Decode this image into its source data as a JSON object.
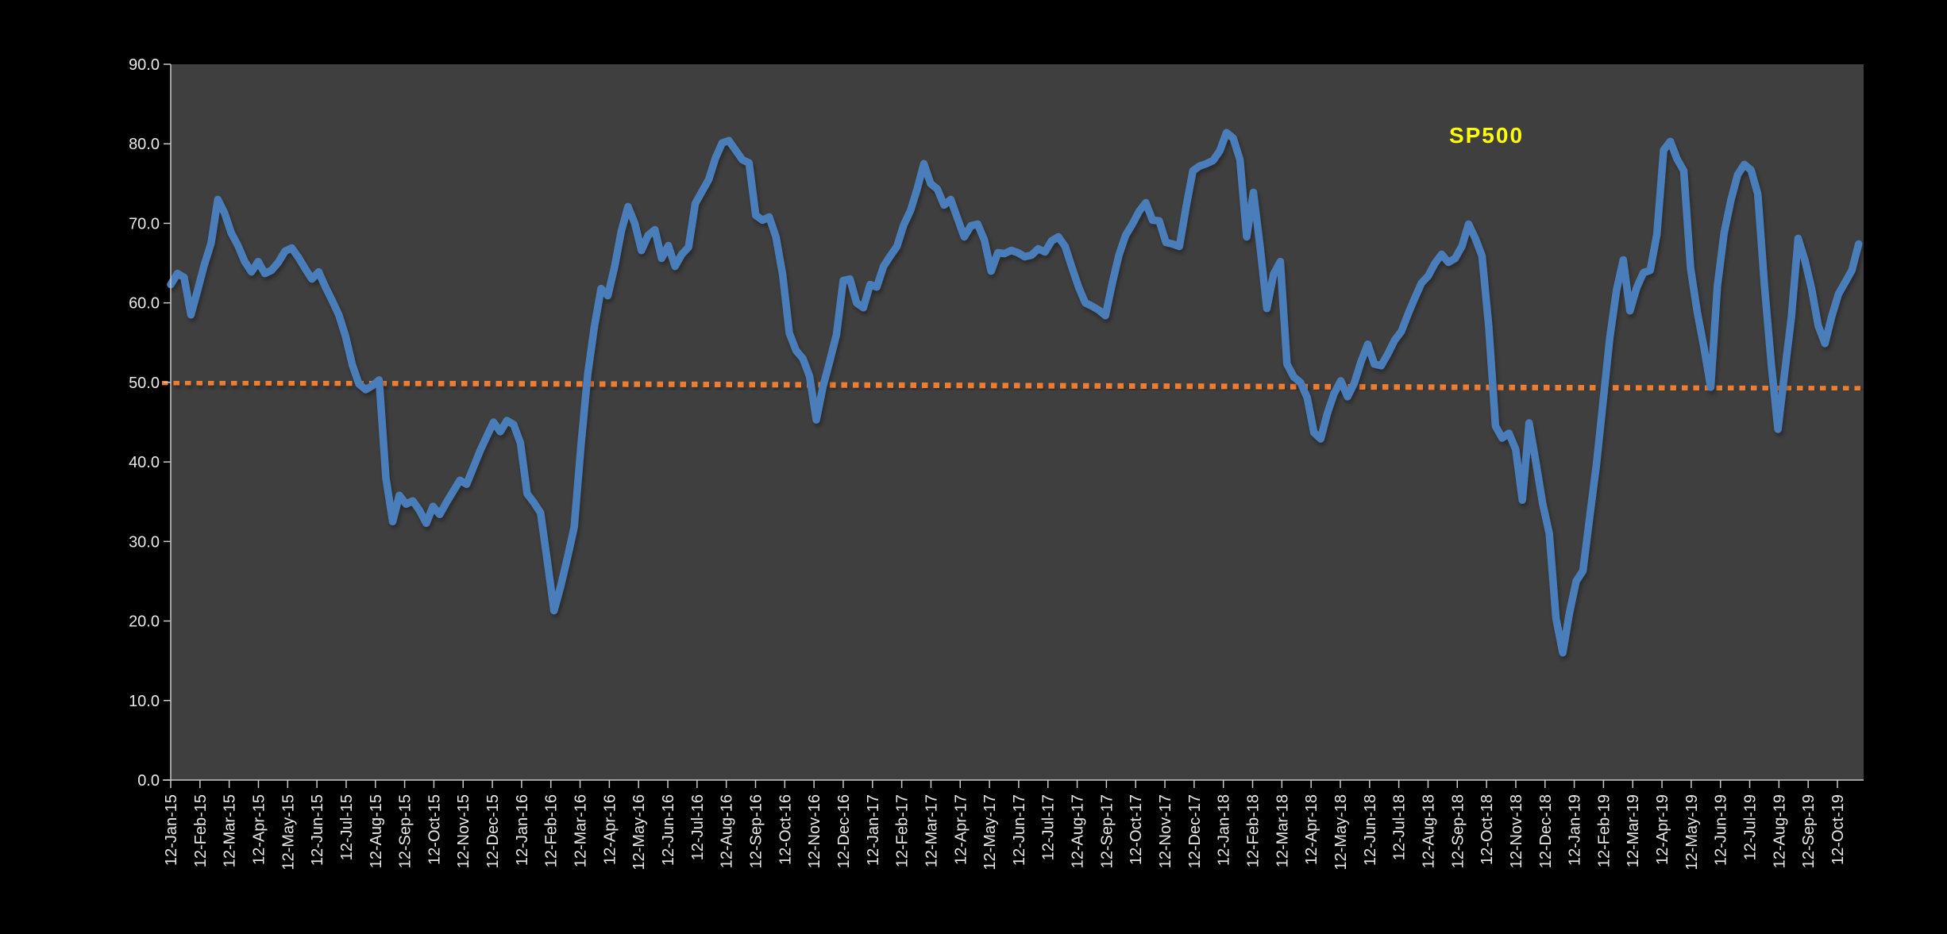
{
  "chart_data": {
    "type": "line",
    "title": "SP500",
    "legend": {
      "label": "SP500",
      "color": "#FFFF00"
    },
    "page_bg": "#000000",
    "plot_bg": "#3F3F3F",
    "axis_color": "#C8C8C8",
    "tick_label_color": "#E8E8E8",
    "ylim": [
      0,
      90
    ],
    "y_tick_labels": [
      "0.0",
      "10.0",
      "20.0",
      "30.0",
      "40.0",
      "50.0",
      "60.0",
      "70.0",
      "80.0",
      "90.0"
    ],
    "x_tick_labels": [
      "12-Jan-15",
      "12-Feb-15",
      "12-Mar-15",
      "12-Apr-15",
      "12-May-15",
      "12-Jun-15",
      "12-Jul-15",
      "12-Aug-15",
      "12-Sep-15",
      "12-Oct-15",
      "12-Nov-15",
      "12-Dec-15",
      "12-Jan-16",
      "12-Feb-16",
      "12-Mar-16",
      "12-Apr-16",
      "12-May-16",
      "12-Jun-16",
      "12-Jul-16",
      "12-Aug-16",
      "12-Sep-16",
      "12-Oct-16",
      "12-Nov-16",
      "12-Dec-16",
      "12-Jan-17",
      "12-Feb-17",
      "12-Mar-17",
      "12-Apr-17",
      "12-May-17",
      "12-Jun-17",
      "12-Jul-17",
      "12-Aug-17",
      "12-Sep-17",
      "12-Oct-17",
      "12-Nov-17",
      "12-Dec-17",
      "12-Jan-18",
      "12-Feb-18",
      "12-Mar-18",
      "12-Apr-18",
      "12-May-18",
      "12-Jun-18",
      "12-Jul-18",
      "12-Aug-18",
      "12-Sep-18",
      "12-Oct-18",
      "12-Nov-18",
      "12-Dec-18",
      "12-Jan-19",
      "12-Feb-19",
      "12-Mar-19",
      "12-Apr-19",
      "12-May-19",
      "12-Jun-19",
      "12-Jul-19",
      "12-Aug-19",
      "12-Sep-19",
      "12-Oct-19"
    ],
    "frequency": "weekly",
    "first_point_date": "12-Jan-15",
    "series": [
      {
        "name": "SP500",
        "color": "#4A7EBB",
        "values": [
          62.3,
          63.7,
          63.2,
          58.5,
          61.6,
          64.8,
          67.5,
          73.0,
          71.3,
          68.8,
          67.2,
          65.2,
          63.9,
          65.2,
          63.7,
          64.1,
          65.1,
          66.5,
          66.9,
          65.7,
          64.3,
          63.0,
          63.9,
          62.0,
          60.3,
          58.5,
          55.8,
          52.2,
          49.8,
          49.1,
          49.6,
          50.3,
          38.0,
          32.5,
          35.8,
          34.7,
          35.1,
          33.9,
          32.3,
          34.4,
          33.4,
          34.9,
          36.3,
          37.7,
          37.2,
          39.3,
          41.4,
          43.2,
          45.0,
          43.8,
          45.2,
          44.7,
          42.4,
          36.0,
          34.9,
          33.6,
          27.5,
          21.3,
          24.4,
          28.0,
          31.8,
          42.0,
          51.0,
          57.0,
          61.8,
          60.9,
          64.5,
          69.0,
          72.1,
          70.0,
          66.6,
          68.5,
          69.2,
          65.6,
          67.2,
          64.6,
          66.1,
          67.0,
          72.5,
          74.0,
          75.5,
          78.2,
          80.1,
          80.4,
          79.2,
          78.0,
          77.6,
          71.0,
          70.4,
          70.8,
          68.3,
          63.5,
          56.2,
          54.0,
          53.0,
          50.8,
          45.3,
          49.5,
          52.7,
          56.0,
          62.8,
          63.0,
          60.0,
          59.4,
          62.3,
          62.0,
          64.6,
          65.9,
          67.1,
          69.8,
          71.6,
          74.3,
          77.5,
          75.0,
          74.3,
          72.3,
          73.0,
          70.6,
          68.3,
          69.7,
          69.9,
          67.9,
          64.0,
          66.3,
          66.2,
          66.6,
          66.3,
          65.8,
          66.0,
          66.8,
          66.4,
          67.8,
          68.3,
          67.1,
          64.5,
          62.0,
          60.0,
          59.6,
          59.1,
          58.4,
          62.4,
          66.0,
          68.5,
          69.9,
          71.5,
          72.6,
          70.4,
          70.3,
          67.6,
          67.4,
          67.1,
          72.1,
          76.6,
          77.2,
          77.5,
          77.9,
          79.1,
          81.4,
          80.7,
          78.0,
          68.3,
          73.9,
          67.0,
          59.3,
          63.6,
          65.2,
          52.3,
          50.7,
          50.0,
          48.1,
          43.7,
          42.9,
          46.1,
          48.6,
          50.2,
          48.2,
          49.9,
          52.6,
          54.8,
          52.3,
          52.1,
          53.6,
          55.3,
          56.4,
          58.6,
          60.6,
          62.5,
          63.4,
          65.0,
          66.1,
          65.1,
          65.6,
          67.1,
          69.9,
          68.1,
          65.9,
          57.0,
          44.5,
          43.0,
          43.6,
          41.6,
          35.2,
          44.9,
          40.0,
          34.8,
          31.0,
          20.3,
          16.0,
          21.0,
          25.0,
          26.3,
          33.0,
          39.6,
          47.6,
          55.6,
          61.6,
          65.4,
          59.0,
          61.9,
          63.8,
          64.1,
          68.6,
          79.2,
          80.3,
          78.1,
          76.6,
          64.4,
          58.9,
          54.4,
          49.4,
          62.1,
          68.8,
          72.9,
          76.1,
          77.4,
          76.7,
          73.7,
          62.2,
          52.4,
          44.1,
          51.2,
          58.2,
          68.1,
          65.4,
          61.8,
          57.1,
          54.9,
          58.3,
          61.1,
          62.6,
          64.1,
          67.4
        ]
      }
    ],
    "trendline": {
      "name": "linear-trend",
      "color": "#ED7D31",
      "style": "dotted",
      "start_value": 50.0,
      "end_value": 49.2
    },
    "grid": "off",
    "legend_position": "inside-top-right"
  }
}
